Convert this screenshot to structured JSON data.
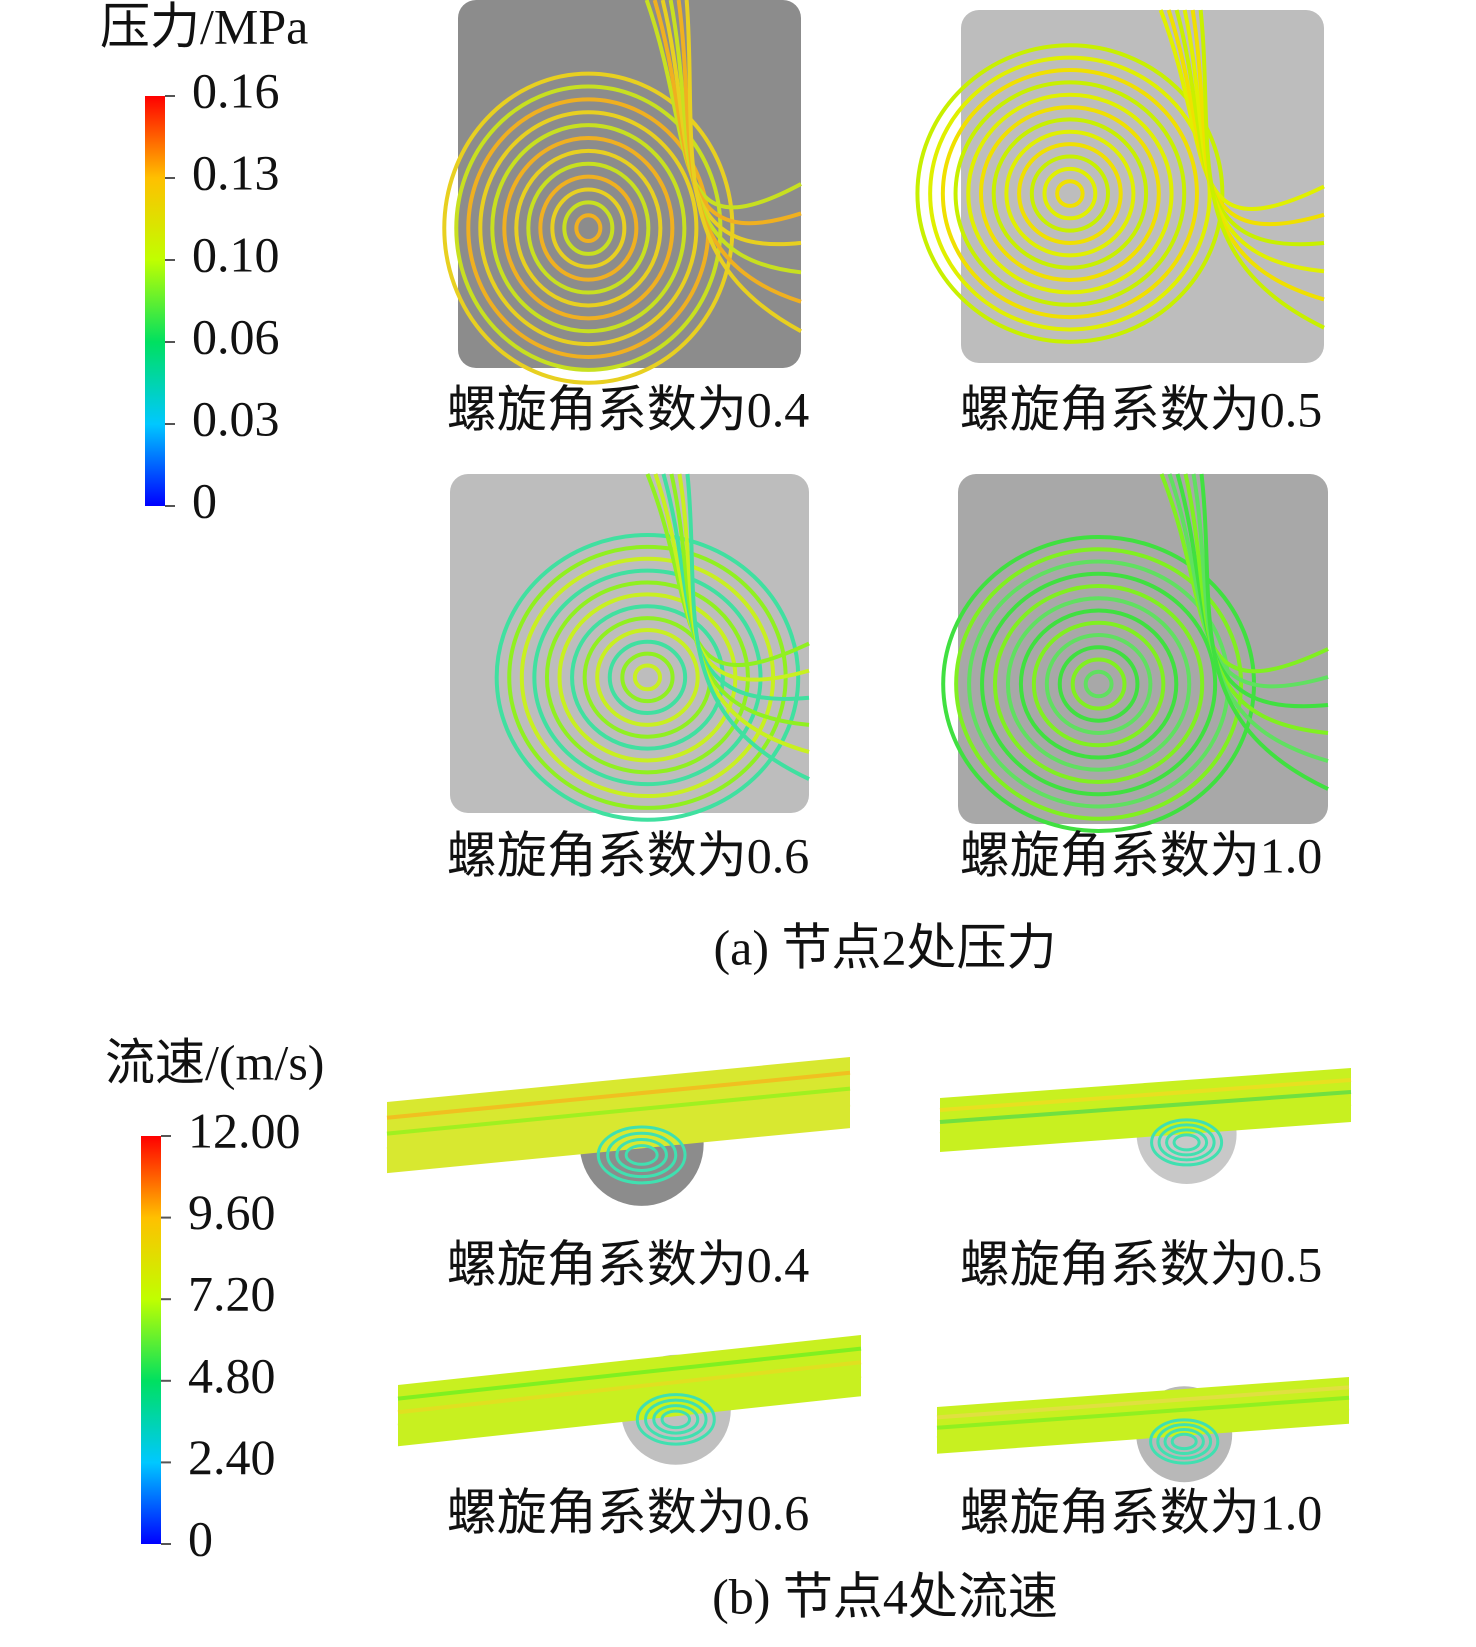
{
  "panel_a": {
    "legend_title": "压力/MPa",
    "legend_ticks": [
      "0.16",
      "0.13",
      "0.10",
      "0.06",
      "0.03",
      "0"
    ],
    "captions": [
      "螺旋角系数为0.4",
      "螺旋角系数为0.5",
      "螺旋角系数为0.6",
      "螺旋角系数为1.0"
    ],
    "caption": "(a) 节点2处压力"
  },
  "panel_b": {
    "legend_title": "流速/(m/s)",
    "legend_ticks": [
      "12.00",
      "9.60",
      "7.20",
      "4.80",
      "2.40",
      "0"
    ],
    "captions": [
      "螺旋角系数为0.4",
      "螺旋角系数为0.5",
      "螺旋角系数为0.6",
      "螺旋角系数为1.0"
    ],
    "caption": "(b) 节点4处流速"
  }
}
